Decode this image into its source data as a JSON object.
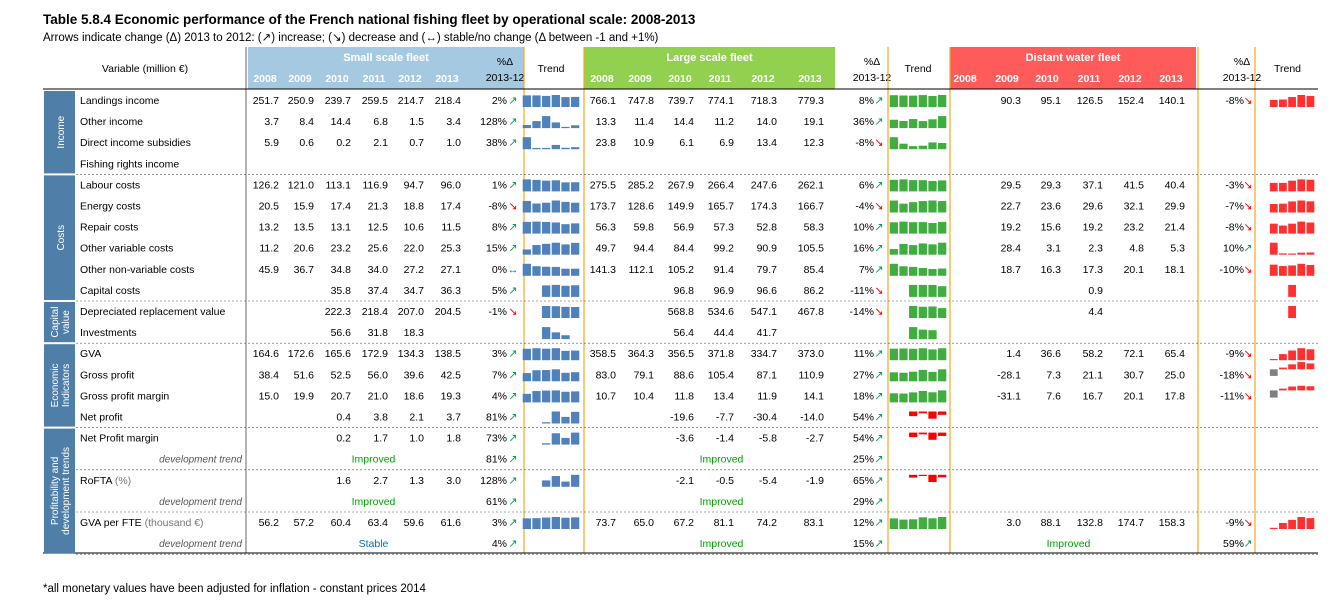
{
  "title": "Table 5.8.4 Economic performance of the French national fishing fleet by operational scale: 2008-2013",
  "subtitle": "Arrows indicate change (Δ) 2013 to 2012: (↗) increase; (↘) decrease and (↔) stable/no change (Δ between -1 and +1%)",
  "footnote": "*all monetary values have been adjusted for inflation - constant prices 2014",
  "header": {
    "variable": "Variable (million €)",
    "pct_label": "%Δ",
    "pct_period": "2013-12",
    "trend_label": "Trend",
    "years": [
      "2008",
      "2009",
      "2010",
      "2011",
      "2012",
      "2013"
    ],
    "fleets": [
      "Small scale fleet",
      "Large scale fleet",
      "Distant water fleet"
    ]
  },
  "colors": {
    "small": "#a6c9e2",
    "large": "#92d050",
    "distant": "#ff5b5b",
    "sidebar": "#4f7fa8",
    "up_arrow": "#00a050",
    "down_arrow": "#ff0000",
    "stable_arrow": "#0070c0",
    "dev_text": "#00a000",
    "stable_text": "#0070c0",
    "spark_small": "#4f81bd",
    "spark_large": "#3fae3f",
    "spark_distant": "#ff3030",
    "spark_negative": "#ff0000",
    "spark_grey": "#808080"
  },
  "groups": [
    {
      "label": "Income",
      "start": 0,
      "end": 3
    },
    {
      "label": "Costs",
      "start": 4,
      "end": 9
    },
    {
      "label": "Capital value",
      "start": 10,
      "end": 11
    },
    {
      "label": "Economic Indicators",
      "start": 12,
      "end": 15
    },
    {
      "label": "Profitability and development trends",
      "start": 16,
      "end": 21
    }
  ],
  "rows": [
    {
      "label": "Landings income",
      "fleets": [
        {
          "vals": [
            "251.7",
            "250.9",
            "239.7",
            "259.5",
            "214.7",
            "218.4"
          ],
          "pct": "2%",
          "arrow": "up"
        },
        {
          "vals": [
            "766.1",
            "747.8",
            "739.7",
            "774.1",
            "718.3",
            "779.3"
          ],
          "pct": "8%",
          "arrow": "up"
        },
        {
          "vals": [
            "",
            "90.3",
            "95.1",
            "126.5",
            "152.4",
            "140.1"
          ],
          "pct": "-8%",
          "arrow": "down"
        }
      ]
    },
    {
      "label": "Other income",
      "fleets": [
        {
          "vals": [
            "3.7",
            "8.4",
            "14.4",
            "6.8",
            "1.5",
            "3.4"
          ],
          "pct": "128%",
          "arrow": "up"
        },
        {
          "vals": [
            "13.3",
            "11.4",
            "14.4",
            "11.2",
            "14.0",
            "19.1"
          ],
          "pct": "36%",
          "arrow": "up"
        },
        {
          "vals": [
            "",
            "",
            "",
            "",
            "",
            ""
          ],
          "pct": "",
          "arrow": ""
        }
      ]
    },
    {
      "label": "Direct income subsidies",
      "fleets": [
        {
          "vals": [
            "5.9",
            "0.6",
            "0.2",
            "2.1",
            "0.7",
            "1.0"
          ],
          "pct": "38%",
          "arrow": "up"
        },
        {
          "vals": [
            "23.8",
            "10.9",
            "6.1",
            "6.9",
            "13.4",
            "12.3"
          ],
          "pct": "-8%",
          "arrow": "down"
        },
        {
          "vals": [
            "",
            "",
            "",
            "",
            "",
            ""
          ],
          "pct": "",
          "arrow": ""
        }
      ]
    },
    {
      "label": "Fishing rights income",
      "fleets": [
        {
          "vals": [
            "",
            "",
            "",
            "",
            "",
            ""
          ],
          "pct": "",
          "arrow": ""
        },
        {
          "vals": [
            "",
            "",
            "",
            "",
            "",
            ""
          ],
          "pct": "",
          "arrow": ""
        },
        {
          "vals": [
            "",
            "",
            "",
            "",
            "",
            ""
          ],
          "pct": "",
          "arrow": ""
        }
      ]
    },
    {
      "label": "Labour costs",
      "fleets": [
        {
          "vals": [
            "126.2",
            "121.0",
            "113.1",
            "116.9",
            "94.7",
            "96.0"
          ],
          "pct": "1%",
          "arrow": "up"
        },
        {
          "vals": [
            "275.5",
            "285.2",
            "267.9",
            "266.4",
            "247.6",
            "262.1"
          ],
          "pct": "6%",
          "arrow": "up"
        },
        {
          "vals": [
            "",
            "29.5",
            "29.3",
            "37.1",
            "41.5",
            "40.4"
          ],
          "pct": "-3%",
          "arrow": "down"
        }
      ]
    },
    {
      "label": "Energy costs",
      "fleets": [
        {
          "vals": [
            "20.5",
            "15.9",
            "17.4",
            "21.3",
            "18.8",
            "17.4"
          ],
          "pct": "-8%",
          "arrow": "down"
        },
        {
          "vals": [
            "173.7",
            "128.6",
            "149.9",
            "165.7",
            "174.3",
            "166.7"
          ],
          "pct": "-4%",
          "arrow": "down"
        },
        {
          "vals": [
            "",
            "22.7",
            "23.6",
            "29.6",
            "32.1",
            "29.9"
          ],
          "pct": "-7%",
          "arrow": "down"
        }
      ]
    },
    {
      "label": "Repair costs",
      "fleets": [
        {
          "vals": [
            "13.2",
            "13.5",
            "13.1",
            "12.5",
            "10.6",
            "11.5"
          ],
          "pct": "8%",
          "arrow": "up"
        },
        {
          "vals": [
            "56.3",
            "59.8",
            "56.9",
            "57.3",
            "52.8",
            "58.3"
          ],
          "pct": "10%",
          "arrow": "up"
        },
        {
          "vals": [
            "",
            "19.2",
            "15.6",
            "19.2",
            "23.2",
            "21.4"
          ],
          "pct": "-8%",
          "arrow": "down"
        }
      ]
    },
    {
      "label": "Other variable costs",
      "fleets": [
        {
          "vals": [
            "11.2",
            "20.6",
            "23.2",
            "25.6",
            "22.0",
            "25.3"
          ],
          "pct": "15%",
          "arrow": "up"
        },
        {
          "vals": [
            "49.7",
            "94.4",
            "84.4",
            "99.2",
            "90.9",
            "105.5"
          ],
          "pct": "16%",
          "arrow": "up"
        },
        {
          "vals": [
            "",
            "28.4",
            "3.1",
            "2.3",
            "4.8",
            "5.3"
          ],
          "pct": "10%",
          "arrow": "up"
        }
      ]
    },
    {
      "label": "Other non-variable costs",
      "fleets": [
        {
          "vals": [
            "45.9",
            "36.7",
            "34.8",
            "34.0",
            "27.2",
            "27.1"
          ],
          "pct": "0%",
          "arrow": "stable"
        },
        {
          "vals": [
            "141.3",
            "112.1",
            "105.2",
            "91.4",
            "79.7",
            "85.4"
          ],
          "pct": "7%",
          "arrow": "up"
        },
        {
          "vals": [
            "",
            "18.7",
            "16.3",
            "17.3",
            "20.1",
            "18.1"
          ],
          "pct": "-10%",
          "arrow": "down"
        }
      ]
    },
    {
      "label": "Capital costs",
      "fleets": [
        {
          "vals": [
            "",
            "",
            "35.8",
            "37.4",
            "34.7",
            "36.3"
          ],
          "pct": "5%",
          "arrow": "up"
        },
        {
          "vals": [
            "",
            "",
            "96.8",
            "96.9",
            "96.6",
            "86.2"
          ],
          "pct": "-11%",
          "arrow": "down"
        },
        {
          "vals": [
            "",
            "",
            "",
            "0.9",
            "",
            ""
          ],
          "pct": "",
          "arrow": ""
        }
      ]
    },
    {
      "label": "Depreciated replacement value",
      "fleets": [
        {
          "vals": [
            "",
            "",
            "222.3",
            "218.4",
            "207.0",
            "204.5"
          ],
          "pct": "-1%",
          "arrow": "down"
        },
        {
          "vals": [
            "",
            "",
            "568.8",
            "534.6",
            "547.1",
            "467.8"
          ],
          "pct": "-14%",
          "arrow": "down"
        },
        {
          "vals": [
            "",
            "",
            "",
            "4.4",
            "",
            ""
          ],
          "pct": "",
          "arrow": ""
        }
      ]
    },
    {
      "label": "Investments",
      "fleets": [
        {
          "vals": [
            "",
            "",
            "56.6",
            "31.8",
            "18.3",
            ""
          ],
          "pct": "",
          "arrow": ""
        },
        {
          "vals": [
            "",
            "",
            "56.4",
            "44.4",
            "41.7",
            ""
          ],
          "pct": "",
          "arrow": ""
        },
        {
          "vals": [
            "",
            "",
            "",
            "",
            "",
            ""
          ],
          "pct": "",
          "arrow": ""
        }
      ]
    },
    {
      "label": "GVA",
      "fleets": [
        {
          "vals": [
            "164.6",
            "172.6",
            "165.6",
            "172.9",
            "134.3",
            "138.5"
          ],
          "pct": "3%",
          "arrow": "up"
        },
        {
          "vals": [
            "358.5",
            "364.3",
            "356.5",
            "371.8",
            "334.7",
            "373.0"
          ],
          "pct": "11%",
          "arrow": "up"
        },
        {
          "vals": [
            "",
            "1.4",
            "36.6",
            "58.2",
            "72.1",
            "65.4"
          ],
          "pct": "-9%",
          "arrow": "down"
        }
      ]
    },
    {
      "label": "Gross profit",
      "fleets": [
        {
          "vals": [
            "38.4",
            "51.6",
            "52.5",
            "56.0",
            "39.6",
            "42.5"
          ],
          "pct": "7%",
          "arrow": "up"
        },
        {
          "vals": [
            "83.0",
            "79.1",
            "88.6",
            "105.4",
            "87.1",
            "110.9"
          ],
          "pct": "27%",
          "arrow": "up"
        },
        {
          "vals": [
            "",
            "-28.1",
            "7.3",
            "21.1",
            "30.7",
            "25.0"
          ],
          "pct": "-18%",
          "arrow": "down"
        }
      ]
    },
    {
      "label": "Gross profit margin",
      "fleets": [
        {
          "vals": [
            "15.0",
            "19.9",
            "20.7",
            "21.0",
            "18.6",
            "19.3"
          ],
          "pct": "4%",
          "arrow": "up"
        },
        {
          "vals": [
            "10.7",
            "10.4",
            "11.8",
            "13.4",
            "11.9",
            "14.1"
          ],
          "pct": "18%",
          "arrow": "up"
        },
        {
          "vals": [
            "",
            "-31.1",
            "7.6",
            "16.7",
            "20.1",
            "17.8"
          ],
          "pct": "-11%",
          "arrow": "down"
        }
      ]
    },
    {
      "label": "Net profit",
      "fleets": [
        {
          "vals": [
            "",
            "",
            "0.4",
            "3.8",
            "2.1",
            "3.7"
          ],
          "pct": "81%",
          "arrow": "up"
        },
        {
          "vals": [
            "",
            "",
            "-19.6",
            "-7.7",
            "-30.4",
            "-14.0"
          ],
          "pct": "54%",
          "arrow": "up"
        },
        {
          "vals": [
            "",
            "",
            "",
            "",
            "",
            ""
          ],
          "pct": "",
          "arrow": ""
        }
      ]
    },
    {
      "label": "Net Profit margin",
      "fleets": [
        {
          "vals": [
            "",
            "",
            "0.2",
            "1.7",
            "1.0",
            "1.8"
          ],
          "pct": "73%",
          "arrow": "up"
        },
        {
          "vals": [
            "",
            "",
            "-3.6",
            "-1.4",
            "-5.8",
            "-2.7"
          ],
          "pct": "54%",
          "arrow": "up"
        },
        {
          "vals": [
            "",
            "",
            "",
            "",
            "",
            ""
          ],
          "pct": "",
          "arrow": ""
        }
      ]
    },
    {
      "label": "development trend",
      "dev": true,
      "fleets": [
        {
          "text": "Improved",
          "pct": "81%",
          "arrow": "up"
        },
        {
          "text": "Improved",
          "pct": "25%",
          "arrow": "up"
        },
        {
          "text": "",
          "pct": "",
          "arrow": ""
        }
      ]
    },
    {
      "label": "RoFTA",
      "unit": "(%)",
      "fleets": [
        {
          "vals": [
            "",
            "",
            "1.6",
            "2.7",
            "1.3",
            "3.0"
          ],
          "pct": "128%",
          "arrow": "up"
        },
        {
          "vals": [
            "",
            "",
            "-2.1",
            "-0.5",
            "-5.4",
            "-1.9"
          ],
          "pct": "65%",
          "arrow": "up"
        },
        {
          "vals": [
            "",
            "",
            "",
            "",
            "",
            ""
          ],
          "pct": "",
          "arrow": ""
        }
      ]
    },
    {
      "label": "development trend",
      "dev": true,
      "fleets": [
        {
          "text": "Improved",
          "pct": "61%",
          "arrow": "up"
        },
        {
          "text": "Improved",
          "pct": "29%",
          "arrow": "up"
        },
        {
          "text": "",
          "pct": "",
          "arrow": ""
        }
      ]
    },
    {
      "label": "GVA per FTE",
      "unit": "(thousand €)",
      "fleets": [
        {
          "vals": [
            "56.2",
            "57.2",
            "60.4",
            "63.4",
            "59.6",
            "61.6"
          ],
          "pct": "3%",
          "arrow": "up"
        },
        {
          "vals": [
            "73.7",
            "65.0",
            "67.2",
            "81.1",
            "74.2",
            "83.1"
          ],
          "pct": "12%",
          "arrow": "up"
        },
        {
          "vals": [
            "",
            "3.0",
            "88.1",
            "132.8",
            "174.7",
            "158.3"
          ],
          "pct": "-9%",
          "arrow": "down"
        }
      ]
    },
    {
      "label": "development trend",
      "dev": true,
      "fleets": [
        {
          "text": "Stable",
          "pct": "4%",
          "arrow": "up",
          "stable": true
        },
        {
          "text": "Improved",
          "pct": "15%",
          "arrow": "up"
        },
        {
          "text": "Improved",
          "pct": "59%",
          "arrow": "up"
        }
      ]
    }
  ]
}
